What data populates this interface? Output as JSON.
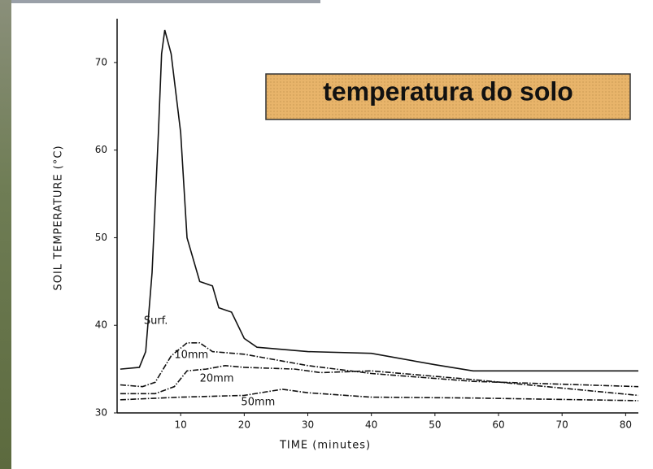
{
  "chart_data": {
    "type": "line",
    "title": "temperatura do solo",
    "x_label": "TIME (minutes)",
    "y_label": "SOIL TEMPERATURE (°C)",
    "xlim": [
      0,
      82
    ],
    "ylim": [
      30,
      75
    ],
    "xticks": [
      10,
      20,
      30,
      40,
      50,
      60,
      70,
      80
    ],
    "yticks": [
      30,
      40,
      50,
      60,
      70
    ],
    "series": [
      {
        "name": "Surf.",
        "color": "#111111",
        "x": [
          0.5,
          3.5,
          4.5,
          5.5,
          6.5,
          7,
          7.5,
          8.5,
          10,
          11,
          13,
          15,
          16,
          18,
          20,
          22,
          30,
          40,
          50,
          56,
          82
        ],
        "values": [
          35,
          35.2,
          37,
          46,
          62,
          71,
          73.7,
          71,
          62,
          50,
          45,
          44.5,
          42,
          41.5,
          38.5,
          37.5,
          37,
          36.8,
          35.5,
          34.8,
          34.8
        ]
      },
      {
        "name": "10mm",
        "color": "#111111",
        "x": [
          0.5,
          4,
          6,
          8.5,
          11,
          13,
          15,
          20,
          30,
          40,
          56,
          82
        ],
        "values": [
          33.2,
          33,
          33.5,
          36.5,
          38,
          38,
          37,
          36.7,
          35.4,
          34.5,
          33.6,
          33
        ]
      },
      {
        "name": "20mm",
        "color": "#111111",
        "x": [
          0.5,
          6,
          9,
          11,
          14,
          17,
          20,
          28,
          32,
          40,
          56,
          82
        ],
        "values": [
          32.2,
          32.2,
          33,
          34.8,
          35,
          35.4,
          35.2,
          35,
          34.6,
          34.8,
          33.8,
          32
        ]
      },
      {
        "name": "50mm",
        "color": "#111111",
        "x": [
          0.5,
          10,
          20,
          26,
          30,
          40,
          56,
          82
        ],
        "values": [
          31.5,
          31.8,
          32,
          32.7,
          32.3,
          31.8,
          31.7,
          31.4
        ]
      }
    ]
  }
}
